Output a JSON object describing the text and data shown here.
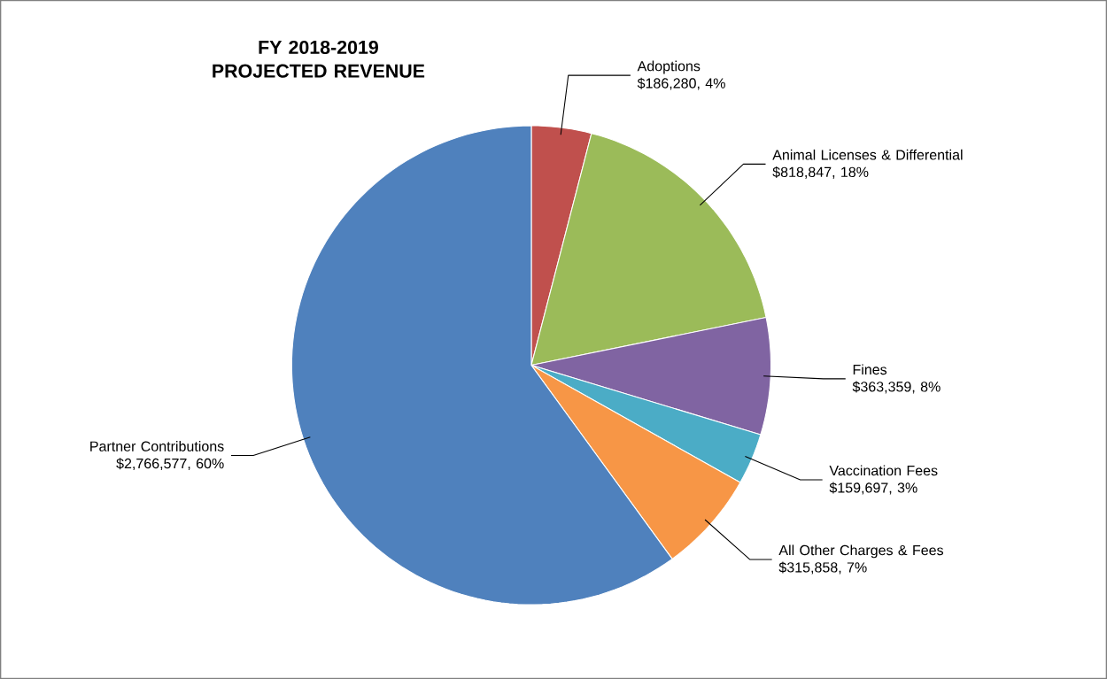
{
  "chart_data": {
    "type": "pie",
    "title": "FY 2018-2019 PROJECTED REVENUE",
    "categories": [
      "Adoptions",
      "Animal Licenses & Differential",
      "Fines",
      "Vaccination Fees",
      "All Other Charges & Fees",
      "Partner Contributions"
    ],
    "values": [
      186280,
      818847,
      363359,
      159697,
      315858,
      2766577
    ],
    "colors": [
      "#c0504d",
      "#9bbb59",
      "#8064a2",
      "#4bacc6",
      "#f79646",
      "#4f81bd"
    ],
    "value_labels": [
      "$186,280, 4%",
      "$818,847, 18%",
      "$363,359, 8%",
      "$159,697, 3%",
      "$315,858, 7%",
      "$2,766,577, 60%"
    ]
  }
}
